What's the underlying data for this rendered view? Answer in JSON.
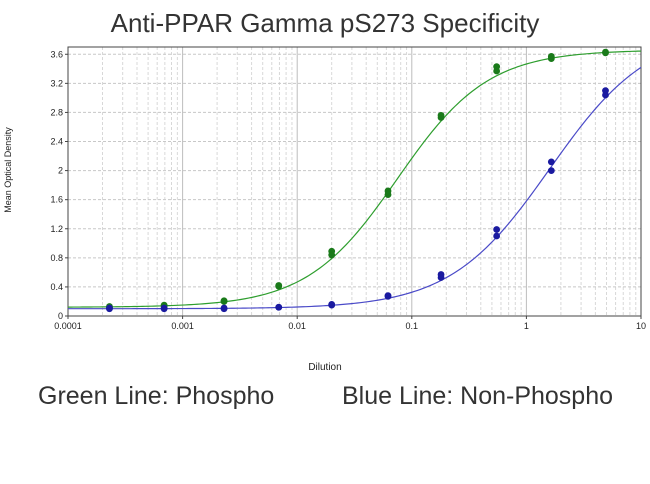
{
  "chart_data": {
    "type": "scatter",
    "title": "Anti-PPAR Gamma pS273 Specificity",
    "xlabel": "Dilution",
    "ylabel": "Mean Optical Density",
    "x_scale": "log",
    "xlim": [
      0.0001,
      10
    ],
    "ylim": [
      0,
      3.7
    ],
    "x_ticks": [
      "0.0001",
      "0.001",
      "0.01",
      "0.1",
      "1",
      "10"
    ],
    "y_ticks": [
      "0",
      "0.4",
      "0.8",
      "1.2",
      "1.6",
      "2",
      "2.4",
      "2.8",
      "3.2",
      "3.6"
    ],
    "grid": true,
    "series": [
      {
        "color": "#2e9e2e",
        "point_color": "#1a7a1a",
        "curve": {
          "bottom": 0.12,
          "top": 3.66,
          "ec50": 0.075,
          "hill": 1.1
        },
        "points": [
          {
            "x": 0.00023,
            "y": 0.12
          },
          {
            "x": 0.00023,
            "y": 0.13
          },
          {
            "x": 0.00069,
            "y": 0.15
          },
          {
            "x": 0.00069,
            "y": 0.13
          },
          {
            "x": 0.0023,
            "y": 0.21
          },
          {
            "x": 0.0023,
            "y": 0.2
          },
          {
            "x": 0.0069,
            "y": 0.41
          },
          {
            "x": 0.0069,
            "y": 0.42
          },
          {
            "x": 0.02,
            "y": 0.89
          },
          {
            "x": 0.02,
            "y": 0.84
          },
          {
            "x": 0.062,
            "y": 1.72
          },
          {
            "x": 0.062,
            "y": 1.67
          },
          {
            "x": 0.18,
            "y": 2.76
          },
          {
            "x": 0.18,
            "y": 2.73
          },
          {
            "x": 0.55,
            "y": 3.43
          },
          {
            "x": 0.55,
            "y": 3.37
          },
          {
            "x": 1.65,
            "y": 3.57
          },
          {
            "x": 1.65,
            "y": 3.54
          },
          {
            "x": 4.9,
            "y": 3.62
          },
          {
            "x": 4.9,
            "y": 3.63
          }
        ]
      },
      {
        "color": "#4a4ac8",
        "point_color": "#1a1aa0",
        "curve": {
          "bottom": 0.1,
          "top": 3.95,
          "ec50": 1.6,
          "hill": 1.0
        },
        "points": [
          {
            "x": 0.00023,
            "y": 0.1
          },
          {
            "x": 0.00023,
            "y": 0.11
          },
          {
            "x": 0.00069,
            "y": 0.1
          },
          {
            "x": 0.00069,
            "y": 0.11
          },
          {
            "x": 0.0023,
            "y": 0.11
          },
          {
            "x": 0.0023,
            "y": 0.1
          },
          {
            "x": 0.0069,
            "y": 0.12
          },
          {
            "x": 0.0069,
            "y": 0.12
          },
          {
            "x": 0.02,
            "y": 0.16
          },
          {
            "x": 0.02,
            "y": 0.15
          },
          {
            "x": 0.062,
            "y": 0.28
          },
          {
            "x": 0.062,
            "y": 0.27
          },
          {
            "x": 0.18,
            "y": 0.57
          },
          {
            "x": 0.18,
            "y": 0.53
          },
          {
            "x": 0.55,
            "y": 1.19
          },
          {
            "x": 0.55,
            "y": 1.1
          },
          {
            "x": 1.65,
            "y": 2.12
          },
          {
            "x": 1.65,
            "y": 2.0
          },
          {
            "x": 4.9,
            "y": 3.1
          },
          {
            "x": 4.9,
            "y": 3.04
          }
        ]
      }
    ]
  },
  "captions": {
    "green": "Green Line: Phospho",
    "blue": "Blue Line: Non-Phospho"
  }
}
